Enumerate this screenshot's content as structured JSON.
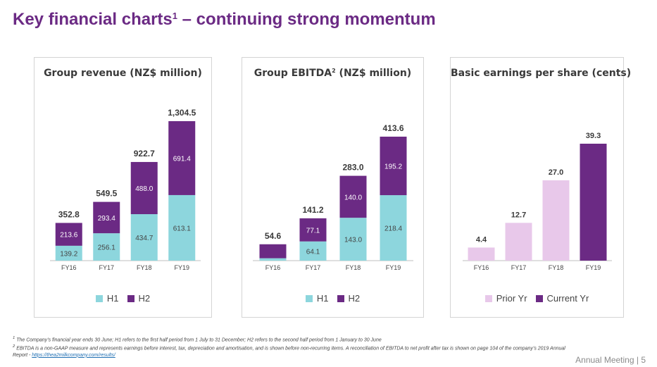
{
  "header": {
    "title": "Key financial charts",
    "title_sup": "1",
    "title_rest": " – continuing strong momentum"
  },
  "colors": {
    "title": "#6b2a84",
    "h1": "#8dd6dd",
    "h2": "#6b2a84",
    "prior_yr": "#e8c8ea",
    "current_yr": "#6b2a84"
  },
  "charts": {
    "revenue": {
      "title": "Group revenue (NZ$ million)",
      "legend": [
        "H1",
        "H2"
      ]
    },
    "ebitda": {
      "title": "Group EBITDA",
      "title_sup": "2",
      "title_rest": " (NZ$ million)",
      "legend": [
        "H1",
        "H2"
      ]
    },
    "eps": {
      "title": "Basic earnings per share (cents)",
      "legend": [
        "Prior Yr",
        "Current Yr"
      ]
    }
  },
  "chart_data": [
    {
      "type": "bar",
      "stacked": true,
      "title": "Group revenue (NZ$ million)",
      "categories": [
        "FY16",
        "FY17",
        "FY18",
        "FY19"
      ],
      "series": [
        {
          "name": "H1",
          "values": [
            139.2,
            256.1,
            434.7,
            613.1
          ],
          "labels": [
            "139.2",
            "256.1",
            "434.7",
            "613.1"
          ]
        },
        {
          "name": "H2",
          "values": [
            213.6,
            293.4,
            488.0,
            691.4
          ],
          "labels": [
            "213.6",
            "293.4",
            "488.0",
            "691.4"
          ]
        }
      ],
      "totals": [
        352.8,
        549.5,
        922.7,
        1304.5
      ],
      "total_labels": [
        "352.8",
        "549.5",
        "922.7",
        "1,304.5"
      ],
      "ylim": [
        0,
        1400
      ],
      "legend_position": "bottom"
    },
    {
      "type": "bar",
      "stacked": true,
      "title": "Group EBITDA (NZ$ million)",
      "categories": [
        "FY16",
        "FY17",
        "FY18",
        "FY19"
      ],
      "series": [
        {
          "name": "H1",
          "values": [
            8.0,
            64.1,
            143.0,
            218.4
          ],
          "labels": [
            "",
            "64.1",
            "143.0",
            "218.4"
          ]
        },
        {
          "name": "H2",
          "values": [
            46.6,
            77.1,
            140.0,
            195.2
          ],
          "labels": [
            "",
            "77.1",
            "140.0",
            "195.2"
          ]
        }
      ],
      "totals": [
        54.6,
        141.2,
        283.0,
        413.6
      ],
      "total_labels": [
        "54.6",
        "141.2",
        "283.0",
        "413.6"
      ],
      "ylim": [
        0,
        500
      ],
      "legend_position": "bottom"
    },
    {
      "type": "bar",
      "title": "Basic earnings per share (cents)",
      "categories": [
        "FY16",
        "FY17",
        "FY18",
        "FY19"
      ],
      "values": [
        4.4,
        12.7,
        27.0,
        39.3
      ],
      "value_labels": [
        "4.4",
        "12.7",
        "27.0",
        "39.3"
      ],
      "bar_series": [
        "Prior Yr",
        "Prior Yr",
        "Prior Yr",
        "Current Yr"
      ],
      "legend": [
        "Prior Yr",
        "Current Yr"
      ],
      "ylim": [
        0,
        42
      ],
      "legend_position": "bottom"
    }
  ],
  "footnotes": {
    "note1_sup": "1",
    "note1": " The Company’s financial year ends 30 June; H1 refers to the first half period from 1 July to 31 December; H2 refers to the second half period from 1 January to 30 June",
    "note2_sup": "2",
    "note2": " EBITDA is a non-GAAP measure and represents earnings before interest, tax, depreciation and amortisation, and is shown before non-recurring items. A reconciliation of EBITDA to net profit after tax is shown on page 104 of the company’s 2019 Annual Report - ",
    "link": "https://thea2milkcompany.com/results/"
  },
  "footer": {
    "label": "Annual Meeting | 5"
  }
}
